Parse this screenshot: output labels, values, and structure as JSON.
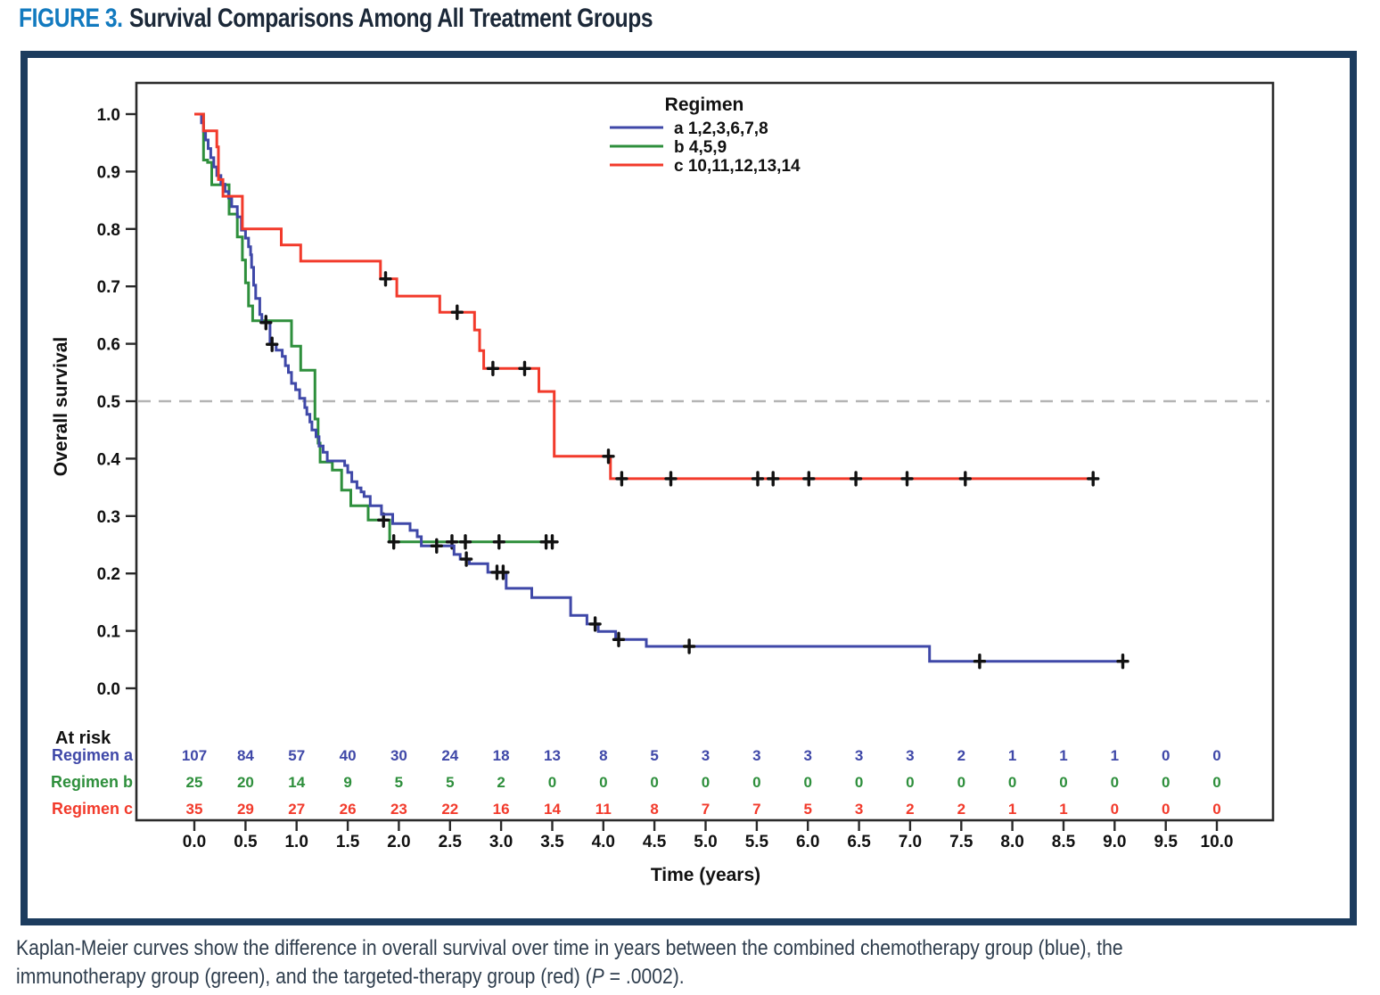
{
  "figure": {
    "label": "FIGURE 3.",
    "title": "Survival Comparisons Among All Treatment Groups"
  },
  "caption": {
    "line1": "Kaplan-Meier curves show the difference in overall survival over time in years between the combined chemotherapy group (blue), the",
    "line2_prefix": "immunotherapy group (green), and the targeted-therapy group (red) (",
    "p_symbol": "P",
    "p_suffix": " = .0002)."
  },
  "colors": {
    "panel_border": "#1c3c5e",
    "figure_label": "#127abf",
    "figure_title_text": "#1b2838",
    "caption_text": "#2e3d4d",
    "regimen_a": "#3f48a8",
    "regimen_b": "#2e8f3c",
    "regimen_c": "#f23a2b",
    "censor": "#111111",
    "axis": "#2a2a2a",
    "reference_line": "#b4b4b4"
  },
  "chart_data": {
    "type": "line",
    "subtype": "kaplan-meier-step",
    "xlabel": "Time (years)",
    "ylabel": "Overall survival",
    "xlim": [
      0.0,
      10.0
    ],
    "ylim": [
      0.0,
      1.0
    ],
    "xtick_step": 0.5,
    "ytick_step": 0.1,
    "grid": false,
    "reference_line_y": 0.5,
    "legend": {
      "title": "Regimen",
      "position": "top-center-inside",
      "entries": [
        {
          "label": "a 1,2,3,6,7,8",
          "series": "Regimen a"
        },
        {
          "label": "b 4,5,9",
          "series": "Regimen b"
        },
        {
          "label": "c 10,11,12,13,14",
          "series": "Regimen c"
        }
      ]
    },
    "series": [
      {
        "name": "Regimen b",
        "color_key": "regimen_b",
        "steps": [
          [
            0,
            1.0
          ],
          [
            0.09,
            0.92
          ],
          [
            0.13,
            0.916
          ],
          [
            0.17,
            0.877
          ],
          [
            0.34,
            0.826
          ],
          [
            0.42,
            0.786
          ],
          [
            0.47,
            0.746
          ],
          [
            0.5,
            0.706
          ],
          [
            0.53,
            0.666
          ],
          [
            0.57,
            0.64
          ],
          [
            0.95,
            0.596
          ],
          [
            1.04,
            0.554
          ],
          [
            1.18,
            0.469
          ],
          [
            1.21,
            0.427
          ],
          [
            1.23,
            0.394
          ],
          [
            1.35,
            0.38
          ],
          [
            1.44,
            0.345
          ],
          [
            1.53,
            0.318
          ],
          [
            1.7,
            0.293
          ],
          [
            1.91,
            0.255
          ],
          [
            3.5,
            0.255
          ]
        ],
        "censors": [
          [
            1.85,
            0.293
          ],
          [
            1.95,
            0.255
          ],
          [
            2.52,
            0.255
          ],
          [
            2.65,
            0.255
          ],
          [
            2.98,
            0.255
          ],
          [
            3.44,
            0.255
          ],
          [
            3.5,
            0.255
          ]
        ]
      },
      {
        "name": "Regimen a",
        "color_key": "regimen_a",
        "steps": [
          [
            0,
            1.0
          ],
          [
            0.07,
            0.985
          ],
          [
            0.09,
            0.97
          ],
          [
            0.11,
            0.955
          ],
          [
            0.135,
            0.94
          ],
          [
            0.16,
            0.924
          ],
          [
            0.19,
            0.908
          ],
          [
            0.22,
            0.893
          ],
          [
            0.26,
            0.878
          ],
          [
            0.3,
            0.865
          ],
          [
            0.335,
            0.854
          ],
          [
            0.365,
            0.839
          ],
          [
            0.42,
            0.821
          ],
          [
            0.46,
            0.798
          ],
          [
            0.5,
            0.784
          ],
          [
            0.53,
            0.769
          ],
          [
            0.55,
            0.755
          ],
          [
            0.56,
            0.733
          ],
          [
            0.58,
            0.702
          ],
          [
            0.6,
            0.679
          ],
          [
            0.64,
            0.651
          ],
          [
            0.66,
            0.637
          ],
          [
            0.74,
            0.599
          ],
          [
            0.8,
            0.589
          ],
          [
            0.86,
            0.578
          ],
          [
            0.89,
            0.562
          ],
          [
            0.92,
            0.55
          ],
          [
            0.95,
            0.531
          ],
          [
            0.99,
            0.52
          ],
          [
            1.03,
            0.505
          ],
          [
            1.08,
            0.489
          ],
          [
            1.1,
            0.477
          ],
          [
            1.13,
            0.464
          ],
          [
            1.15,
            0.45
          ],
          [
            1.19,
            0.438
          ],
          [
            1.22,
            0.422
          ],
          [
            1.26,
            0.411
          ],
          [
            1.3,
            0.396
          ],
          [
            1.47,
            0.388
          ],
          [
            1.5,
            0.376
          ],
          [
            1.54,
            0.36
          ],
          [
            1.59,
            0.349
          ],
          [
            1.63,
            0.342
          ],
          [
            1.66,
            0.334
          ],
          [
            1.72,
            0.318
          ],
          [
            1.83,
            0.303
          ],
          [
            1.94,
            0.287
          ],
          [
            2.11,
            0.275
          ],
          [
            2.18,
            0.264
          ],
          [
            2.22,
            0.248
          ],
          [
            2.54,
            0.233
          ],
          [
            2.6,
            0.225
          ],
          [
            2.69,
            0.217
          ],
          [
            2.87,
            0.202
          ],
          [
            3.05,
            0.174
          ],
          [
            3.3,
            0.158
          ],
          [
            3.68,
            0.127
          ],
          [
            3.84,
            0.112
          ],
          [
            3.95,
            0.099
          ],
          [
            4.12,
            0.085
          ],
          [
            4.42,
            0.073
          ],
          [
            7.19,
            0.047
          ],
          [
            9.08,
            0.047
          ]
        ],
        "censors": [
          [
            0.7,
            0.637
          ],
          [
            0.76,
            0.599
          ],
          [
            2.37,
            0.248
          ],
          [
            2.66,
            0.225
          ],
          [
            2.96,
            0.202
          ],
          [
            3.02,
            0.202
          ],
          [
            3.92,
            0.112
          ],
          [
            4.15,
            0.085
          ],
          [
            4.84,
            0.073
          ],
          [
            7.68,
            0.047
          ],
          [
            9.08,
            0.047
          ]
        ]
      },
      {
        "name": "Regimen c",
        "color_key": "regimen_c",
        "steps": [
          [
            0,
            1.0
          ],
          [
            0.09,
            0.971
          ],
          [
            0.22,
            0.943
          ],
          [
            0.235,
            0.886
          ],
          [
            0.28,
            0.857
          ],
          [
            0.47,
            0.8
          ],
          [
            0.85,
            0.772
          ],
          [
            1.04,
            0.744
          ],
          [
            1.82,
            0.713
          ],
          [
            1.98,
            0.683
          ],
          [
            2.4,
            0.655
          ],
          [
            2.74,
            0.624
          ],
          [
            2.79,
            0.588
          ],
          [
            2.83,
            0.557
          ],
          [
            3.37,
            0.517
          ],
          [
            3.52,
            0.404
          ],
          [
            4.07,
            0.365
          ],
          [
            8.79,
            0.365
          ]
        ],
        "censors": [
          [
            1.87,
            0.713
          ],
          [
            2.57,
            0.655
          ],
          [
            2.92,
            0.557
          ],
          [
            3.23,
            0.557
          ],
          [
            4.05,
            0.404
          ],
          [
            4.18,
            0.365
          ],
          [
            4.66,
            0.365
          ],
          [
            5.51,
            0.365
          ],
          [
            5.66,
            0.365
          ],
          [
            6.01,
            0.365
          ],
          [
            6.47,
            0.365
          ],
          [
            6.97,
            0.365
          ],
          [
            7.54,
            0.365
          ],
          [
            8.79,
            0.365
          ]
        ]
      }
    ],
    "at_risk": {
      "header": "At risk",
      "times": [
        0.0,
        0.5,
        1.0,
        1.5,
        2.0,
        2.5,
        3.0,
        3.5,
        4.0,
        4.5,
        5.0,
        5.5,
        6.0,
        6.5,
        7.0,
        7.5,
        8.0,
        8.5,
        9.0,
        9.5,
        10.0
      ],
      "rows": [
        {
          "label": "Regimen a",
          "color_key": "regimen_a",
          "values": [
            107,
            84,
            57,
            40,
            30,
            24,
            18,
            13,
            8,
            5,
            3,
            3,
            3,
            3,
            3,
            2,
            1,
            1,
            1,
            0,
            0
          ]
        },
        {
          "label": "Regimen b",
          "color_key": "regimen_b",
          "values": [
            25,
            20,
            14,
            9,
            5,
            5,
            2,
            0,
            0,
            0,
            0,
            0,
            0,
            0,
            0,
            0,
            0,
            0,
            0,
            0,
            0
          ]
        },
        {
          "label": "Regimen c",
          "color_key": "regimen_c",
          "values": [
            35,
            29,
            27,
            26,
            23,
            22,
            16,
            14,
            11,
            8,
            7,
            7,
            5,
            3,
            2,
            2,
            1,
            1,
            0,
            0,
            0
          ]
        }
      ]
    }
  }
}
